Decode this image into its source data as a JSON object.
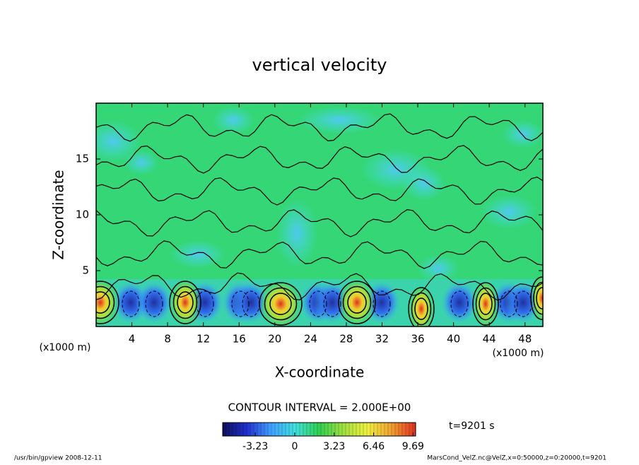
{
  "chart_data": {
    "type": "contour",
    "title": "vertical velocity",
    "xlabel": "X-coordinate",
    "ylabel": "Z-coordinate",
    "xunits": "(x1000 m)",
    "yunits": "(x1000 m)",
    "xlim": [
      0,
      50
    ],
    "xticks": [
      4,
      8,
      12,
      16,
      20,
      24,
      28,
      32,
      36,
      40,
      44,
      48
    ],
    "ylim": [
      0,
      20
    ],
    "yticks": [
      5,
      10,
      15
    ],
    "contour_label": "CONTOUR INTERVAL = 2.000E+00",
    "time_label": "t=9201 s",
    "clim": [
      -5.9,
      9.9
    ],
    "cticks": [
      -3.23,
      0,
      3.23,
      6.46,
      9.69
    ],
    "colormap": [
      "#10105a",
      "#2030d0",
      "#40a0ff",
      "#40e0e0",
      "#30d050",
      "#a0e040",
      "#f0f040",
      "#f0a030",
      "#e03020"
    ]
  },
  "footer": {
    "left": "/usr/bin/gpview  2008-12-11",
    "right": "MarsCond_VelZ.nc@VelZ,x=0:50000,z=0:20000,t=9201"
  }
}
